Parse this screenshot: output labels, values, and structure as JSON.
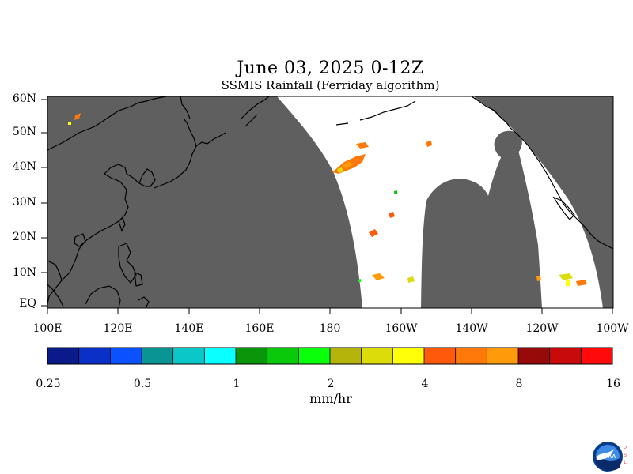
{
  "header": {
    "title": "June 03, 2025 0-12Z",
    "subtitle": "SSMIS Rainfall (Ferriday algorithm)"
  },
  "map": {
    "lat_labels": [
      "60N",
      "50N",
      "40N",
      "30N",
      "20N",
      "10N",
      "EQ"
    ],
    "lon_labels": [
      "100E",
      "120E",
      "140E",
      "160E",
      "180",
      "160W",
      "140W",
      "120W",
      "100W"
    ],
    "colors": {
      "no_data": "#5f5f5f",
      "swath": "#ffffff",
      "coast": "#000000"
    }
  },
  "colorbar": {
    "tick_labels": [
      "0.25",
      "0.5",
      "1",
      "2",
      "4",
      "8",
      "16"
    ],
    "units": "mm/hr",
    "colors": [
      "#0a1a88",
      "#0a30c8",
      "#0a52ff",
      "#0a9494",
      "#0ac8c8",
      "#0affff",
      "#0a960a",
      "#0ac80a",
      "#0aff0a",
      "#b4b40a",
      "#dcdc0a",
      "#ffff0a",
      "#ff5a0a",
      "#ff780a",
      "#ff9a0a",
      "#960a0a",
      "#c80a0a",
      "#ff0a0a"
    ]
  },
  "logo": {
    "name": "NOAA",
    "side_text": "PSL"
  }
}
